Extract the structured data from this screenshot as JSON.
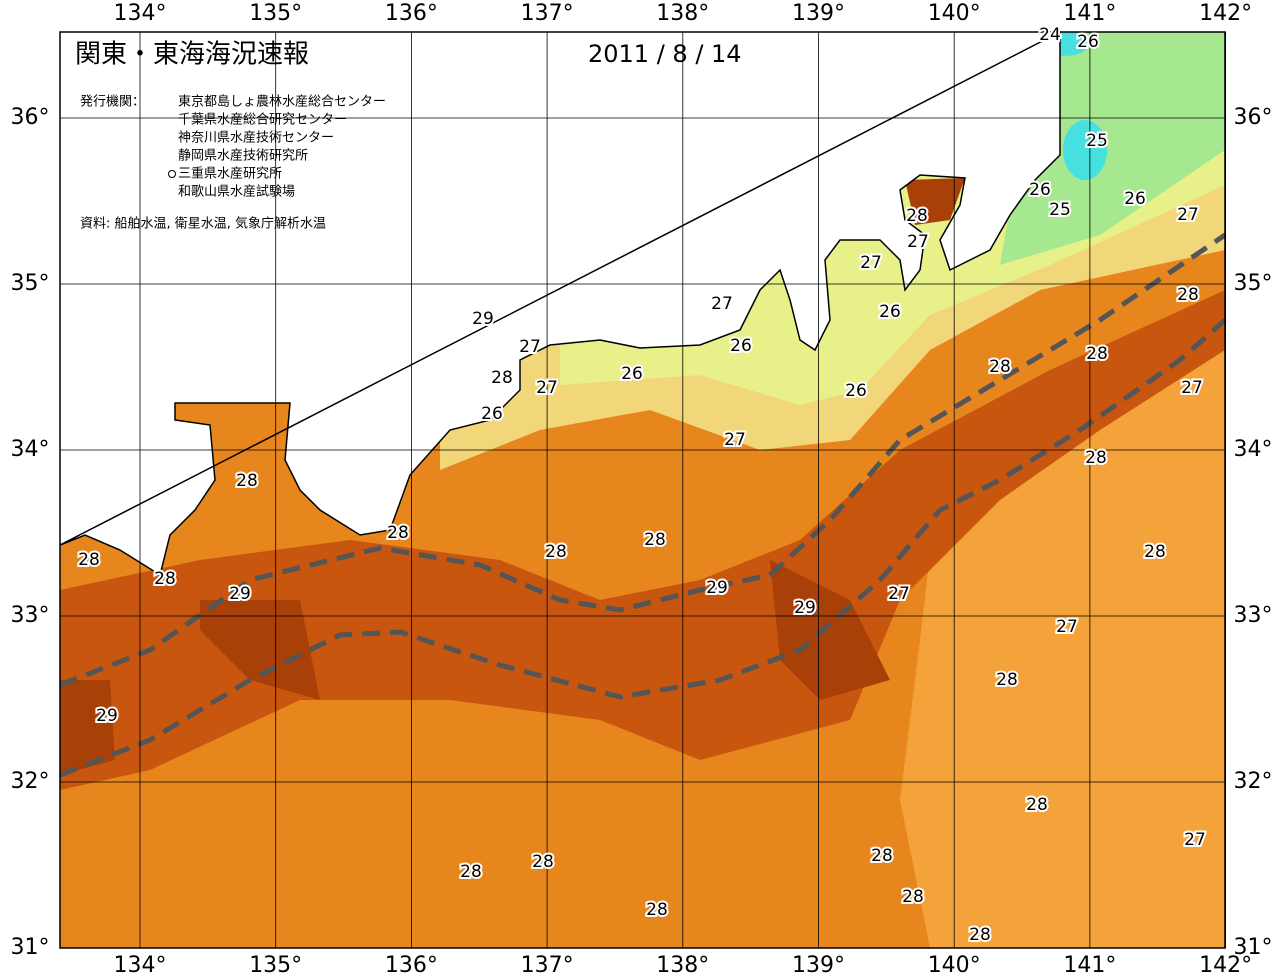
{
  "map": {
    "title": "関東・東海海況速報",
    "date": "2011 / 8 / 14",
    "publisher_heading": "発行機関：",
    "publishers": [
      "東京都島しょ農林水産総合センター",
      "千葉県水産総合研究センター",
      "神奈川県水産技術センター",
      "静岡県水産技術研究所",
      "三重県水産研究所",
      "和歌山県水産試験場"
    ],
    "source": "資料: 船舶水温, 衛星水温, 気象庁解析水温",
    "lon_ticks": [
      {
        "value": 134,
        "label": "134°"
      },
      {
        "value": 135,
        "label": "135°"
      },
      {
        "value": 136,
        "label": "136°"
      },
      {
        "value": 137,
        "label": "137°"
      },
      {
        "value": 138,
        "label": "138°"
      },
      {
        "value": 139,
        "label": "139°"
      },
      {
        "value": 140,
        "label": "140°"
      },
      {
        "value": 141,
        "label": "141°"
      },
      {
        "value": 142,
        "label": "142°"
      }
    ],
    "lat_ticks": [
      {
        "value": 31,
        "label": "31°"
      },
      {
        "value": 32,
        "label": "32°"
      },
      {
        "value": 33,
        "label": "33°"
      },
      {
        "value": 34,
        "label": "34°"
      },
      {
        "value": 35,
        "label": "35°"
      },
      {
        "value": 36,
        "label": "36°"
      }
    ],
    "isotherm_labels": [
      24,
      26,
      25,
      26,
      25,
      26,
      27,
      28,
      27,
      27,
      28,
      26,
      27,
      29,
      26,
      27,
      28,
      28,
      28,
      27,
      26,
      26,
      27,
      26,
      27,
      28,
      28,
      28,
      28,
      28,
      28,
      28,
      28,
      29,
      29,
      27,
      29,
      27,
      28,
      29,
      28,
      27,
      28,
      28,
      28,
      28,
      28,
      28
    ]
  }
}
